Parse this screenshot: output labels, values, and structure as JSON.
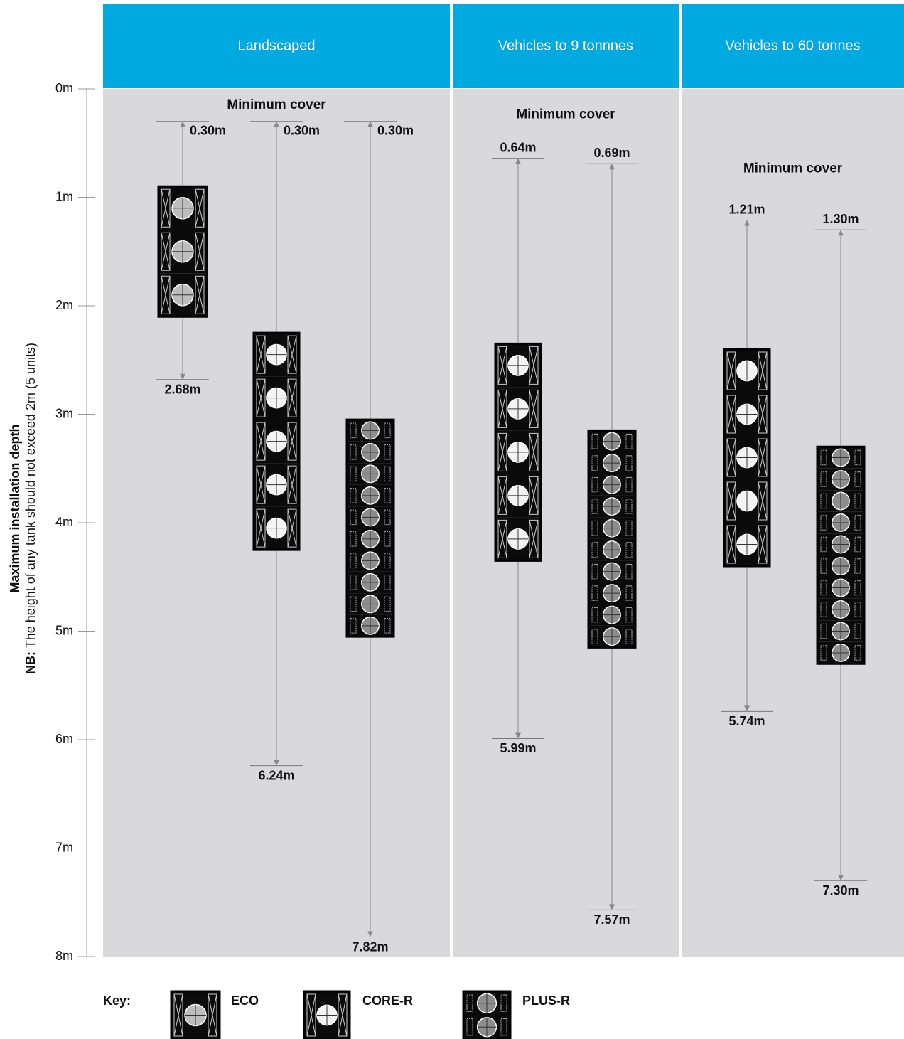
{
  "chart_data": {
    "type": "range",
    "y_label": "Maximum installation depth",
    "y_note_lead": "NB:",
    "y_note": "The height of any tank should not exceed 2m (5 units)",
    "ylim": [
      0,
      8
    ],
    "yticks": [
      {
        "value": 0,
        "label": "0m"
      },
      {
        "value": 1,
        "label": "1m"
      },
      {
        "value": 2,
        "label": "2m"
      },
      {
        "value": 3,
        "label": "3m"
      },
      {
        "value": 4,
        "label": "4m"
      },
      {
        "value": 5,
        "label": "5m"
      },
      {
        "value": 6,
        "label": "6m"
      },
      {
        "value": 7,
        "label": "7m"
      },
      {
        "value": 8,
        "label": "8m"
      }
    ],
    "key_title": "Key:",
    "key": [
      "ECO",
      "CORE-R",
      "PLUS-R"
    ],
    "panels": [
      {
        "title": "Landscaped",
        "subtitle": "Minimum cover",
        "items": [
          {
            "key": 0,
            "cover": 0.3,
            "cover_label": "0.30m",
            "max": 2.68,
            "max_label": "2.68m",
            "tank": [
              0.9,
              2.1
            ]
          },
          {
            "key": 1,
            "cover": 0.3,
            "cover_label": "0.30m",
            "max": 6.24,
            "max_label": "6.24m",
            "tank": [
              2.25,
              4.25
            ]
          },
          {
            "key": 2,
            "cover": 0.3,
            "cover_label": "0.30m",
            "max": 7.82,
            "max_label": "7.82m",
            "tank": [
              3.05,
              5.05
            ]
          }
        ]
      },
      {
        "title": "Vehicles to 9 tonnnes",
        "subtitle": "Minimum cover",
        "items": [
          {
            "key": 1,
            "cover": 0.64,
            "cover_label": "0.64m",
            "max": 5.99,
            "max_label": "5.99m",
            "tank": [
              2.35,
              4.35
            ]
          },
          {
            "key": 2,
            "cover": 0.69,
            "cover_label": "0.69m",
            "max": 7.57,
            "max_label": "7.57m",
            "tank": [
              3.15,
              5.15
            ]
          }
        ]
      },
      {
        "title": "Vehicles to 60 tonnes",
        "subtitle": "Minimum cover",
        "items": [
          {
            "key": 1,
            "cover": 1.21,
            "cover_label": "1.21m",
            "max": 5.74,
            "max_label": "5.74m",
            "tank": [
              2.4,
              4.4
            ]
          },
          {
            "key": 2,
            "cover": 1.3,
            "cover_label": "1.30m",
            "max": 7.3,
            "max_label": "7.30m",
            "tank": [
              3.3,
              5.3
            ]
          }
        ]
      }
    ]
  }
}
